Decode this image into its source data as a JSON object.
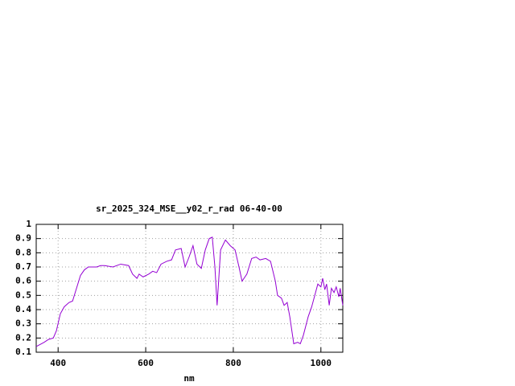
{
  "chart_data": {
    "type": "line",
    "title": "sr_2025_324_MSE__y02_r_rad 06-40-00",
    "x_label": "nm",
    "x": [
      350,
      368,
      378,
      389,
      396,
      405,
      414,
      425,
      433,
      442,
      451,
      460,
      469,
      488,
      497,
      506,
      525,
      543,
      561,
      570,
      580,
      585,
      594,
      607,
      616,
      625,
      635,
      648,
      659,
      668,
      681,
      690,
      699,
      708,
      717,
      727,
      736,
      745,
      752,
      758,
      763,
      771,
      782,
      793,
      804,
      813,
      820,
      831,
      842,
      852,
      861,
      874,
      885,
      896,
      901,
      910,
      916,
      923,
      929,
      938,
      947,
      953,
      960,
      971,
      979,
      986,
      993,
      1000,
      1004,
      1009,
      1013,
      1019,
      1024,
      1030,
      1035,
      1041,
      1044,
      1050
    ],
    "series": [
      {
        "color": "#9400d3",
        "values": [
          0.14,
          0.17,
          0.19,
          0.2,
          0.25,
          0.37,
          0.42,
          0.45,
          0.46,
          0.55,
          0.64,
          0.68,
          0.7,
          0.7,
          0.71,
          0.71,
          0.7,
          0.72,
          0.71,
          0.65,
          0.62,
          0.65,
          0.63,
          0.65,
          0.67,
          0.66,
          0.72,
          0.74,
          0.75,
          0.82,
          0.83,
          0.7,
          0.77,
          0.85,
          0.72,
          0.69,
          0.82,
          0.9,
          0.91,
          0.7,
          0.43,
          0.82,
          0.89,
          0.85,
          0.82,
          0.7,
          0.6,
          0.65,
          0.76,
          0.77,
          0.75,
          0.76,
          0.74,
          0.6,
          0.5,
          0.48,
          0.43,
          0.45,
          0.35,
          0.16,
          0.17,
          0.16,
          0.22,
          0.35,
          0.42,
          0.5,
          0.58,
          0.56,
          0.62,
          0.54,
          0.58,
          0.43,
          0.55,
          0.52,
          0.56,
          0.49,
          0.55,
          0.43
        ]
      }
    ],
    "xlim": [
      350,
      1050
    ],
    "xticks": [
      400,
      600,
      800,
      1000
    ],
    "ylim": [
      0.1,
      1
    ],
    "yticks": [
      0.1,
      0.2,
      0.3,
      0.4,
      0.5,
      0.6,
      0.7,
      0.8,
      0.9,
      1
    ],
    "grid": true
  }
}
